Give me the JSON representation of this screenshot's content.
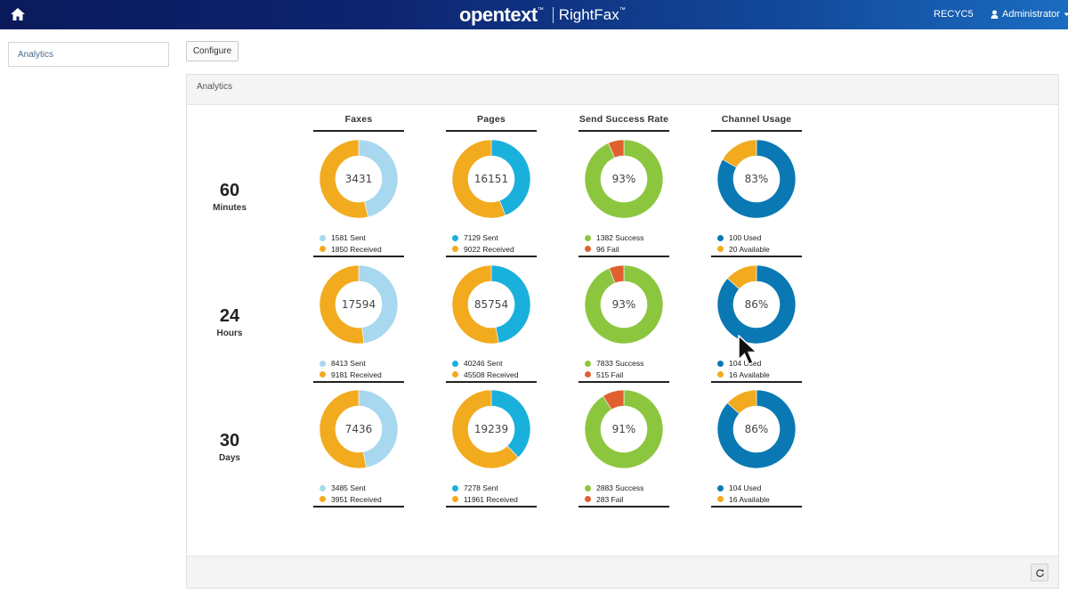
{
  "header": {
    "brand": "opentext",
    "product": "RightFax",
    "trademark": "™",
    "server": "RECYC5",
    "user": "Administrator"
  },
  "nav": {
    "items": [
      {
        "label": "Analytics"
      }
    ]
  },
  "toolbar": {
    "configure_label": "Configure"
  },
  "panel": {
    "title": "Analytics"
  },
  "columns": [
    {
      "label": "Faxes"
    },
    {
      "label": "Pages"
    },
    {
      "label": "Send Success Rate"
    },
    {
      "label": "Channel Usage"
    }
  ],
  "rows": [
    {
      "num": "60",
      "unit": "Minutes"
    },
    {
      "num": "24",
      "unit": "Hours"
    },
    {
      "num": "30",
      "unit": "Days"
    }
  ],
  "colors": {
    "faxes_sent": "#a8d8ef",
    "received": "#f2ab1e",
    "pages_sent": "#1ab0dc",
    "success": "#8cc63f",
    "fail": "#e06032",
    "used": "#0a79b3",
    "available": "#f2ab1e"
  },
  "chart_data": [
    {
      "type": "pie",
      "title": "Faxes",
      "row": "60 Minutes",
      "center": "3431",
      "series": [
        {
          "name": "Sent",
          "value": 1581,
          "label": "1581 Sent",
          "color": "#a8d8ef"
        },
        {
          "name": "Received",
          "value": 1850,
          "label": "1850 Received",
          "color": "#f2ab1e"
        }
      ]
    },
    {
      "type": "pie",
      "title": "Pages",
      "row": "60 Minutes",
      "center": "16151",
      "series": [
        {
          "name": "Sent",
          "value": 7129,
          "label": "7129 Sent",
          "color": "#1ab0dc"
        },
        {
          "name": "Received",
          "value": 9022,
          "label": "9022 Received",
          "color": "#f2ab1e"
        }
      ]
    },
    {
      "type": "pie",
      "title": "Send Success Rate",
      "row": "60 Minutes",
      "center": "93%",
      "series": [
        {
          "name": "Success",
          "value": 1382,
          "label": "1382 Success",
          "color": "#8cc63f"
        },
        {
          "name": "Fail",
          "value": 96,
          "label": "96 Fail",
          "color": "#e06032"
        }
      ]
    },
    {
      "type": "pie",
      "title": "Channel Usage",
      "row": "60 Minutes",
      "center": "83%",
      "series": [
        {
          "name": "Used",
          "value": 100,
          "label": "100 Used",
          "color": "#0a79b3"
        },
        {
          "name": "Available",
          "value": 20,
          "label": "20 Available",
          "color": "#f2ab1e"
        }
      ]
    },
    {
      "type": "pie",
      "title": "Faxes",
      "row": "24 Hours",
      "center": "17594",
      "series": [
        {
          "name": "Sent",
          "value": 8413,
          "label": "8413 Sent",
          "color": "#a8d8ef"
        },
        {
          "name": "Received",
          "value": 9181,
          "label": "9181 Received",
          "color": "#f2ab1e"
        }
      ]
    },
    {
      "type": "pie",
      "title": "Pages",
      "row": "24 Hours",
      "center": "85754",
      "series": [
        {
          "name": "Sent",
          "value": 40246,
          "label": "40246 Sent",
          "color": "#1ab0dc"
        },
        {
          "name": "Received",
          "value": 45508,
          "label": "45508 Received",
          "color": "#f2ab1e"
        }
      ]
    },
    {
      "type": "pie",
      "title": "Send Success Rate",
      "row": "24 Hours",
      "center": "93%",
      "series": [
        {
          "name": "Success",
          "value": 7833,
          "label": "7833 Success",
          "color": "#8cc63f"
        },
        {
          "name": "Fail",
          "value": 515,
          "label": "515 Fail",
          "color": "#e06032"
        }
      ]
    },
    {
      "type": "pie",
      "title": "Channel Usage",
      "row": "24 Hours",
      "center": "86%",
      "series": [
        {
          "name": "Used",
          "value": 104,
          "label": "104 Used",
          "color": "#0a79b3"
        },
        {
          "name": "Available",
          "value": 16,
          "label": "16 Available",
          "color": "#f2ab1e"
        }
      ]
    },
    {
      "type": "pie",
      "title": "Faxes",
      "row": "30 Days",
      "center": "7436",
      "series": [
        {
          "name": "Sent",
          "value": 3485,
          "label": "3485 Sent",
          "color": "#a8d8ef"
        },
        {
          "name": "Received",
          "value": 3951,
          "label": "3951 Received",
          "color": "#f2ab1e"
        }
      ]
    },
    {
      "type": "pie",
      "title": "Pages",
      "row": "30 Days",
      "center": "19239",
      "series": [
        {
          "name": "Sent",
          "value": 7278,
          "label": "7278 Sent",
          "color": "#1ab0dc"
        },
        {
          "name": "Received",
          "value": 11961,
          "label": "11961 Received",
          "color": "#f2ab1e"
        }
      ]
    },
    {
      "type": "pie",
      "title": "Send Success Rate",
      "row": "30 Days",
      "center": "91%",
      "series": [
        {
          "name": "Success",
          "value": 2883,
          "label": "2883 Success",
          "color": "#8cc63f"
        },
        {
          "name": "Fail",
          "value": 283,
          "label": "283 Fail",
          "color": "#e06032"
        }
      ]
    },
    {
      "type": "pie",
      "title": "Channel Usage",
      "row": "30 Days",
      "center": "86%",
      "series": [
        {
          "name": "Used",
          "value": 104,
          "label": "104 Used",
          "color": "#0a79b3"
        },
        {
          "name": "Available",
          "value": 16,
          "label": "16 Available",
          "color": "#f2ab1e"
        }
      ]
    }
  ]
}
